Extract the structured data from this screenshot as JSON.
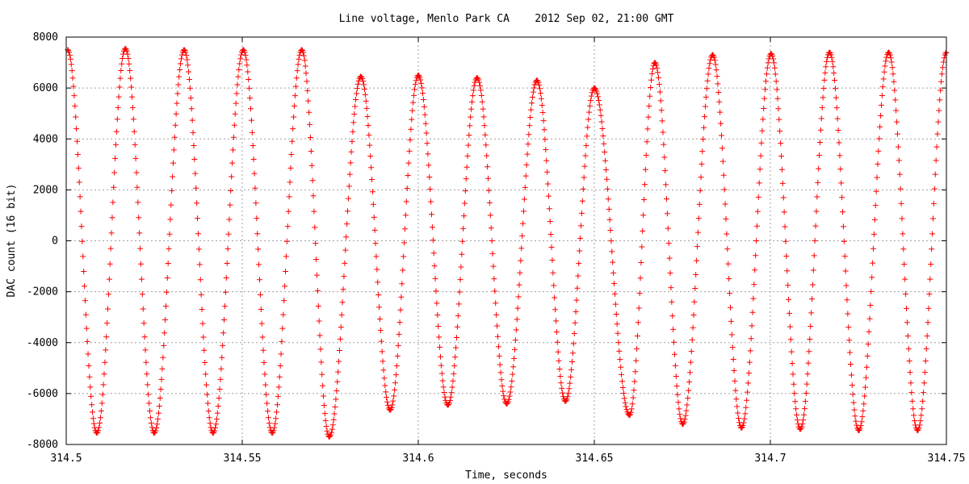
{
  "chart_data": {
    "type": "scatter",
    "title": "Line voltage, Menlo Park CA    2012 Sep 02, 21:00 GMT",
    "xlabel": "Time, seconds",
    "ylabel": "DAC count (16 bit)",
    "xlim": [
      314.5,
      314.75
    ],
    "ylim": [
      -8000,
      8000
    ],
    "grid": true,
    "marker": "plus",
    "marker_color": "#ff0000",
    "x_ticks": [
      "314.5",
      "314.55",
      "314.6",
      "314.65",
      "314.7",
      "314.75"
    ],
    "x_tick_values": [
      314.5,
      314.55,
      314.6,
      314.65,
      314.7,
      314.75
    ],
    "y_ticks": [
      "8000",
      "6000",
      "4000",
      "2000",
      "0",
      "-2000",
      "-4000",
      "-6000",
      "-8000"
    ],
    "y_tick_values": [
      8000,
      6000,
      4000,
      2000,
      0,
      -2000,
      -4000,
      -6000,
      -8000
    ],
    "series": [
      {
        "marker": "+",
        "color": "#ff0000",
        "cycle_period_s": 0.01667,
        "cycles": [
          {
            "peak_t": 314.5004,
            "peak": 7500,
            "trough_t": 314.5087,
            "trough": -7550
          },
          {
            "peak_t": 314.5168,
            "peak": 7550,
            "trough_t": 314.525,
            "trough": -7550
          },
          {
            "peak_t": 314.5335,
            "peak": 7500,
            "trough_t": 314.5417,
            "trough": -7550
          },
          {
            "peak_t": 314.5503,
            "peak": 7500,
            "trough_t": 314.5585,
            "trough": -7550
          },
          {
            "peak_t": 314.5669,
            "peak": 7500,
            "trough_t": 314.5747,
            "trough": -7700
          },
          {
            "peak_t": 314.5837,
            "peak": 6450,
            "trough_t": 314.592,
            "trough": -6650
          },
          {
            "peak_t": 314.6,
            "peak": 6500,
            "trough_t": 314.6084,
            "trough": -6450
          },
          {
            "peak_t": 314.6167,
            "peak": 6400,
            "trough_t": 314.6251,
            "trough": -6400
          },
          {
            "peak_t": 314.6337,
            "peak": 6300,
            "trough_t": 314.6418,
            "trough": -6300
          },
          {
            "peak_t": 314.65,
            "peak": 6000,
            "trough_t": 314.66,
            "trough": -6850
          },
          {
            "peak_t": 314.6672,
            "peak": 7000,
            "trough_t": 314.6751,
            "trough": -7200
          },
          {
            "peak_t": 314.6836,
            "peak": 7300,
            "trough_t": 314.6918,
            "trough": -7350
          },
          {
            "peak_t": 314.7002,
            "peak": 7350,
            "trough_t": 314.7085,
            "trough": -7400
          },
          {
            "peak_t": 314.7168,
            "peak": 7400,
            "trough_t": 314.7251,
            "trough": -7450
          },
          {
            "peak_t": 314.7336,
            "peak": 7400,
            "trough_t": 314.7418,
            "trough": -7450
          },
          {
            "peak_t": 314.75,
            "peak": 7400,
            "trough_t": null,
            "trough": null
          }
        ]
      }
    ]
  }
}
